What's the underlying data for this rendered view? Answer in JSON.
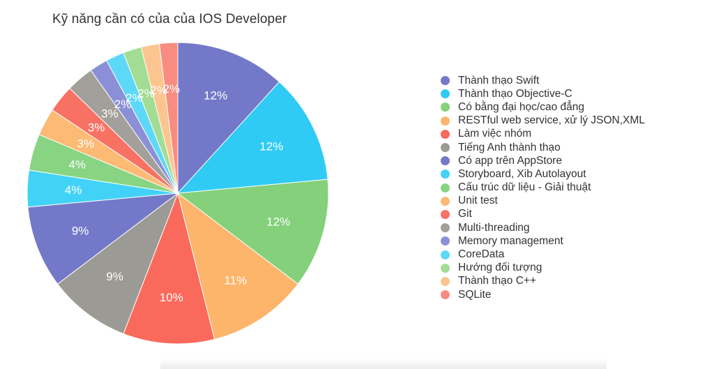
{
  "chart_data": {
    "type": "pie",
    "title": "Kỹ năng cần có của của IOS Developer",
    "legend_position": "right",
    "slices": [
      {
        "label": "Thành thạo Swift",
        "value": 12,
        "display": "12%",
        "color": "#7379C8"
      },
      {
        "label": "Thành thạo Objective-C",
        "value": 12,
        "display": "12%",
        "color": "#2FCBF5"
      },
      {
        "label": "Có bằng đại học/cao đẳng",
        "value": 12,
        "display": "12%",
        "color": "#84D07B"
      },
      {
        "label": "RESTful web service, xử lý JSON,XML",
        "value": 11,
        "display": "11%",
        "color": "#FDB56B"
      },
      {
        "label": "Làm việc nhóm",
        "value": 10,
        "display": "10%",
        "color": "#FA6A5C"
      },
      {
        "label": "Tiếng Anh thành thạo",
        "value": 9,
        "display": "9%",
        "color": "#9C9A94"
      },
      {
        "label": "Có app trên AppStore",
        "value": 9,
        "display": "9%",
        "color": "#7379C8"
      },
      {
        "label": "Storyboard, Xib Autolayout",
        "value": 4,
        "display": "4%",
        "color": "#42D2F7"
      },
      {
        "label": "Cấu trúc dữ liệu - Giải thuật",
        "value": 4,
        "display": "4%",
        "color": "#88D483"
      },
      {
        "label": "Unit test",
        "value": 3,
        "display": "3%",
        "color": "#FDBA74"
      },
      {
        "label": "Git",
        "value": 3,
        "display": "3%",
        "color": "#F87264"
      },
      {
        "label": "Multi-threading",
        "value": 3,
        "display": "3%",
        "color": "#A39F9B"
      },
      {
        "label": "Memory management",
        "value": 2,
        "display": "2%",
        "color": "#8B90D6"
      },
      {
        "label": "CoreData",
        "value": 2,
        "display": "2%",
        "color": "#5ED8F8"
      },
      {
        "label": "Hướng đối tượng",
        "value": 2,
        "display": "2%",
        "color": "#A3DC94"
      },
      {
        "label": "Thành thạo C++",
        "value": 2,
        "display": "2%",
        "color": "#FCC58F"
      },
      {
        "label": "SQLite",
        "value": 2,
        "display": "2%",
        "color": "#F98C80"
      }
    ]
  }
}
